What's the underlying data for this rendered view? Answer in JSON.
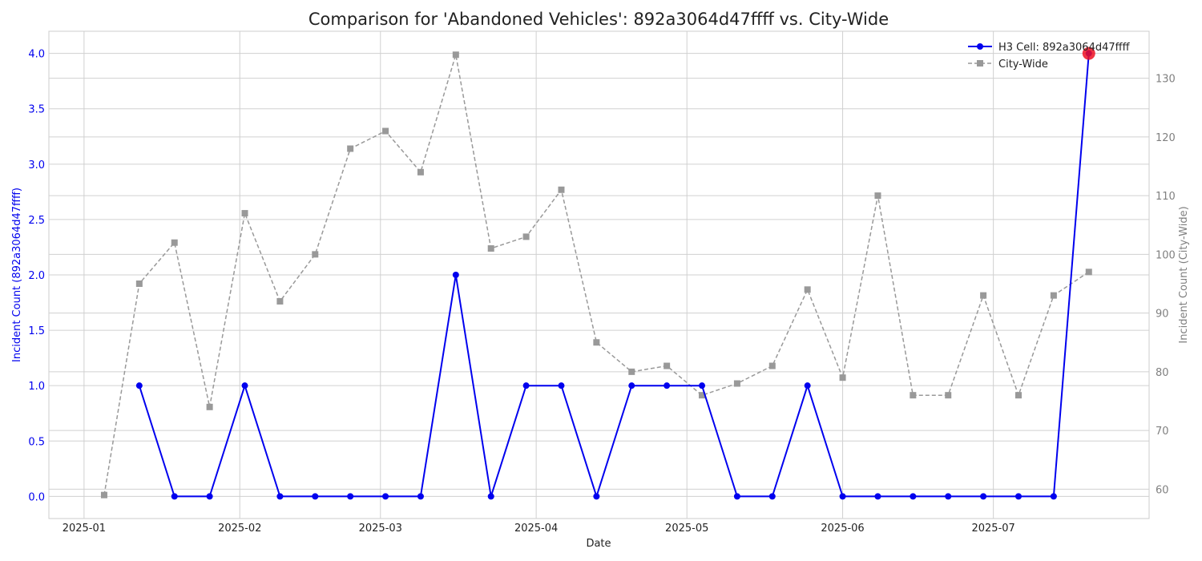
{
  "chart_data": {
    "type": "line",
    "title": "Comparison for 'Abandoned Vehicles': 892a3064d47ffff vs. City-Wide",
    "xlabel": "Date",
    "ylabel_left": "Incident Count (892a3064d47ffff)",
    "ylabel_right": "Incident Count (City-Wide)",
    "x_ticks": [
      "2025-01",
      "2025-02",
      "2025-03",
      "2025-04",
      "2025-05",
      "2025-06",
      "2025-07"
    ],
    "y_left_ticks": [
      "0.0",
      "0.5",
      "1.0",
      "1.5",
      "2.0",
      "2.5",
      "3.0",
      "3.5",
      "4.0"
    ],
    "y_right_ticks": [
      "60",
      "70",
      "80",
      "90",
      "100",
      "110",
      "120",
      "130"
    ],
    "y_left_lim": [
      -0.2,
      4.2
    ],
    "y_right_lim": [
      55,
      138
    ],
    "x_lim": [
      "2024-12-25",
      "2025-08-01"
    ],
    "grid": true,
    "legend_position": "top-right",
    "colors": {
      "h3": "#0000ee",
      "city": "#999999",
      "highlight": "#ee1122",
      "left_axis": "#0000ee",
      "right_axis": "#808080"
    },
    "series": [
      {
        "name": "H3 Cell: 892a3064d47ffff",
        "axis": "left",
        "x": [
          "2025-01-12",
          "2025-01-19",
          "2025-01-26",
          "2025-02-02",
          "2025-02-09",
          "2025-02-16",
          "2025-02-23",
          "2025-03-02",
          "2025-03-09",
          "2025-03-16",
          "2025-03-23",
          "2025-03-30",
          "2025-04-06",
          "2025-04-13",
          "2025-04-20",
          "2025-04-27",
          "2025-05-04",
          "2025-05-11",
          "2025-05-18",
          "2025-05-25",
          "2025-06-01",
          "2025-06-08",
          "2025-06-15",
          "2025-06-22",
          "2025-06-29",
          "2025-07-06",
          "2025-07-13",
          "2025-07-20"
        ],
        "y": [
          1,
          0,
          0,
          1,
          0,
          0,
          0,
          0,
          0,
          2,
          0,
          1,
          1,
          0,
          1,
          1,
          1,
          0,
          0,
          1,
          0,
          0,
          0,
          0,
          0,
          0,
          0,
          4
        ]
      },
      {
        "name": "City-Wide",
        "axis": "right",
        "x": [
          "2025-01-05",
          "2025-01-12",
          "2025-01-19",
          "2025-01-26",
          "2025-02-02",
          "2025-02-09",
          "2025-02-16",
          "2025-02-23",
          "2025-03-02",
          "2025-03-09",
          "2025-03-16",
          "2025-03-23",
          "2025-03-30",
          "2025-04-06",
          "2025-04-13",
          "2025-04-20",
          "2025-04-27",
          "2025-05-04",
          "2025-05-11",
          "2025-05-18",
          "2025-05-25",
          "2025-06-01",
          "2025-06-08",
          "2025-06-15",
          "2025-06-22",
          "2025-06-29",
          "2025-07-06",
          "2025-07-13",
          "2025-07-20"
        ],
        "y": [
          59,
          95,
          102,
          74,
          107,
          92,
          100,
          118,
          121,
          114,
          134,
          101,
          103,
          111,
          85,
          80,
          81,
          76,
          78,
          81,
          94,
          79,
          110,
          76,
          76,
          93,
          76,
          93,
          97
        ]
      }
    ],
    "highlight_point": {
      "series": "H3 Cell: 892a3064d47ffff",
      "x": "2025-07-20",
      "y": 4
    }
  }
}
